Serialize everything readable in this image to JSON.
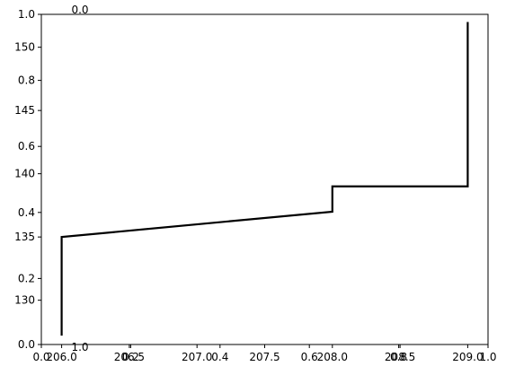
{
  "chart_data": {
    "type": "line",
    "title": "",
    "xlabel": "",
    "ylabel": "",
    "grid": false,
    "series": [
      {
        "name": "line",
        "color": "#000000",
        "points": [
          {
            "x": 206.0,
            "y": 127.2
          },
          {
            "x": 206.0,
            "y": 135.0
          },
          {
            "x": 208.0,
            "y": 137.0
          },
          {
            "x": 208.0,
            "y": 139.0
          },
          {
            "x": 209.0,
            "y": 139.0
          },
          {
            "x": 209.0,
            "y": 152.0
          }
        ]
      }
    ],
    "data_axes": {
      "xlim": [
        205.85,
        209.15
      ],
      "ylim": [
        126.5,
        152.6
      ],
      "xticks": [
        {
          "value": 206.0,
          "label": "206.0"
        },
        {
          "value": 206.5,
          "label": "206.5"
        },
        {
          "value": 207.0,
          "label": "207.0"
        },
        {
          "value": 207.5,
          "label": "207.5"
        },
        {
          "value": 208.0,
          "label": "208.0"
        },
        {
          "value": 208.5,
          "label": "208.5"
        },
        {
          "value": 209.0,
          "label": "209.0"
        }
      ],
      "yticks": [
        {
          "value": 130,
          "label": "130"
        },
        {
          "value": 135,
          "label": "135"
        },
        {
          "value": 140,
          "label": "140"
        },
        {
          "value": 145,
          "label": "145"
        },
        {
          "value": 150,
          "label": "150"
        }
      ]
    },
    "unit_axes": {
      "xlim": [
        0,
        1
      ],
      "ylim": [
        0,
        1
      ],
      "xticks": [
        {
          "value": 0.0,
          "label": "0.0"
        },
        {
          "value": 0.2,
          "label": "0.2"
        },
        {
          "value": 0.4,
          "label": "0.4"
        },
        {
          "value": 0.6,
          "label": "0.6"
        },
        {
          "value": 0.8,
          "label": "0.8"
        },
        {
          "value": 1.0,
          "label": "1.0"
        }
      ],
      "yticks": [
        {
          "value": 0.0,
          "label": "0.0"
        },
        {
          "value": 0.2,
          "label": "0.2"
        },
        {
          "value": 0.4,
          "label": "0.4"
        },
        {
          "value": 0.6,
          "label": "0.6"
        },
        {
          "value": 0.8,
          "label": "0.8"
        },
        {
          "value": 1.0,
          "label": "1.0"
        }
      ]
    },
    "stray_labels": [
      {
        "text": "0.0",
        "x": 0.0,
        "y": 1.0,
        "placement": "above-top-left"
      },
      {
        "text": "1.0",
        "x": 0.0,
        "y": 0.0,
        "placement": "below-bottom-left"
      }
    ]
  }
}
